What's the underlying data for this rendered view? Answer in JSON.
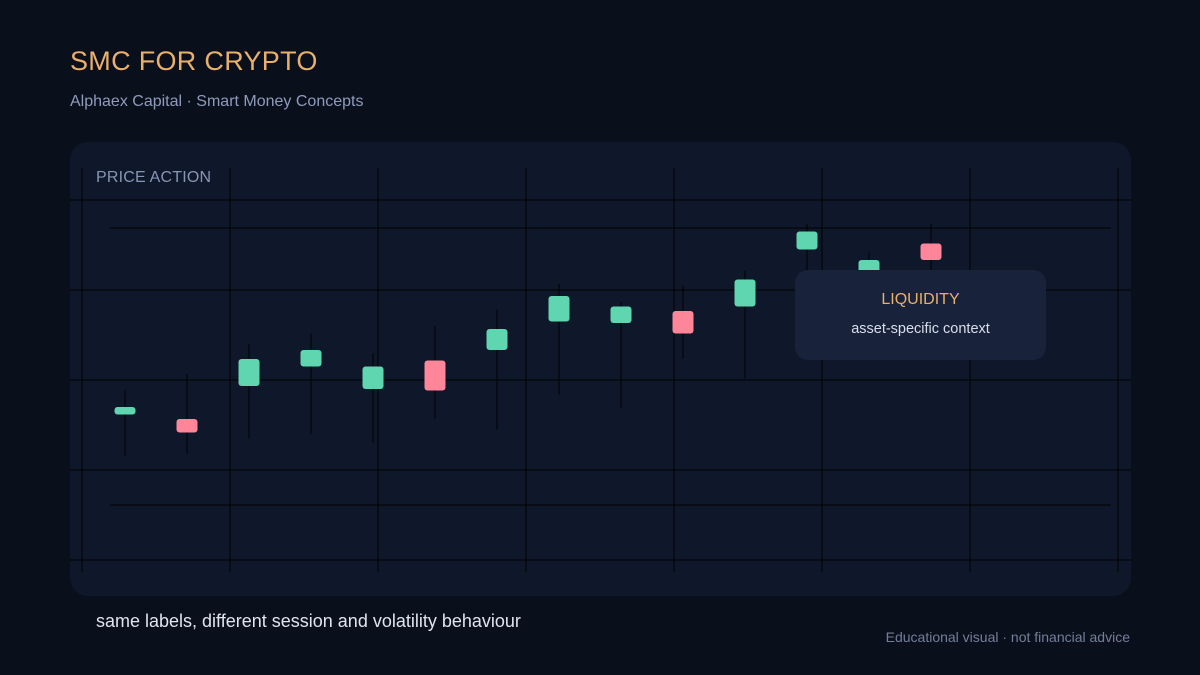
{
  "header": {
    "title": "SMC FOR CRYPTO",
    "subtitle": "Alphaex Capital · Smart Money Concepts"
  },
  "panel": {
    "label": "PRICE ACTION"
  },
  "callout": {
    "title": "LIQUIDITY",
    "text": "asset-specific context"
  },
  "caption": "same labels, different session and volatility behaviour",
  "footnote": "Educational visual · not financial advice",
  "colors": {
    "background": "#0a0f1c",
    "panel": "#0f172a",
    "accent": "#e8b06a",
    "bullish": "#5fd6b0",
    "bearish": "#ff8599",
    "grid": "#000000"
  },
  "chart_data": {
    "type": "candlestick",
    "title": "PRICE ACTION",
    "axes_labeled": false,
    "grid": true,
    "candles": [
      {
        "open": 35.0,
        "close": 40.0,
        "high": 51.0,
        "low": 7.0
      },
      {
        "open": 32.0,
        "close": 23.0,
        "high": 62.0,
        "low": 9.0
      },
      {
        "open": 54.0,
        "close": 72.0,
        "high": 82.0,
        "low": 19.0
      },
      {
        "open": 67.0,
        "close": 78.0,
        "high": 89.0,
        "low": 22.0
      },
      {
        "open": 52.0,
        "close": 67.0,
        "high": 76.0,
        "low": 16.0
      },
      {
        "open": 71.0,
        "close": 51.0,
        "high": 94.0,
        "low": 32.0
      },
      {
        "open": 78.0,
        "close": 92.0,
        "high": 105.0,
        "low": 25.0
      },
      {
        "open": 97.0,
        "close": 114.0,
        "high": 122.0,
        "low": 48.0
      },
      {
        "open": 96.0,
        "close": 107.0,
        "high": 110.0,
        "low": 39.0
      },
      {
        "open": 104.0,
        "close": 89.0,
        "high": 121.0,
        "low": 72.0
      },
      {
        "open": 107.0,
        "close": 125.0,
        "high": 131.0,
        "low": 59.0
      },
      {
        "open": 145.0,
        "close": 157.0,
        "high": 162.0,
        "low": 100.0
      },
      {
        "open": 127.0,
        "close": 138.0,
        "high": 143.0,
        "low": 98.0
      },
      {
        "open": 149.0,
        "close": 138.0,
        "high": 162.0,
        "low": 119.0
      }
    ],
    "ylim": [
      0,
      180
    ]
  }
}
